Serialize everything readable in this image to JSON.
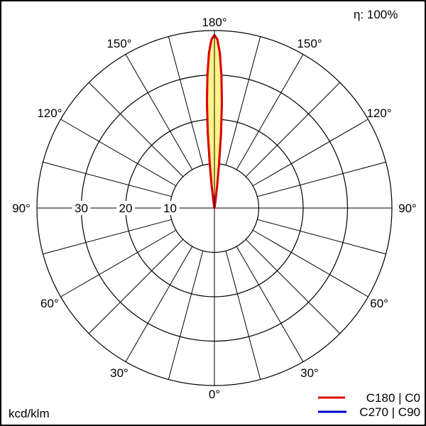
{
  "chart_data": {
    "type": "polar",
    "efficiency_label": "η: 100%",
    "unit_label": "kcd/klm",
    "radial_ticks": [
      10,
      20,
      30
    ],
    "radial_max": 40,
    "angle_labels": [
      {
        "angle": 180,
        "text": "180°"
      },
      {
        "angle": 150,
        "text": "150°"
      },
      {
        "angle": -150,
        "text": "150°"
      },
      {
        "angle": 120,
        "text": "120°"
      },
      {
        "angle": -120,
        "text": "120°"
      },
      {
        "angle": 90,
        "text": "90°"
      },
      {
        "angle": -90,
        "text": "90°"
      },
      {
        "angle": 60,
        "text": "60°"
      },
      {
        "angle": -60,
        "text": "60°"
      },
      {
        "angle": 30,
        "text": "30°"
      },
      {
        "angle": -30,
        "text": "30°"
      },
      {
        "angle": 0,
        "text": "0°"
      }
    ],
    "grid": true,
    "legend_position": "bottom-right",
    "series": [
      {
        "name": "C270 | C90",
        "color": "#0000cc",
        "angles_from_180": [
          0,
          1,
          2,
          3,
          4,
          5,
          6,
          7,
          8,
          10
        ],
        "values": [
          39,
          38,
          35,
          30,
          24,
          17,
          10,
          5,
          2,
          0
        ]
      },
      {
        "name": "C180 | C0",
        "color": "#e00000",
        "fill": "#fff38a",
        "angles_from_180": [
          0,
          1,
          2,
          3,
          4,
          5,
          6,
          7,
          8,
          10
        ],
        "values": [
          39,
          38,
          35,
          30,
          24,
          17,
          10,
          5,
          2,
          0
        ]
      }
    ]
  }
}
